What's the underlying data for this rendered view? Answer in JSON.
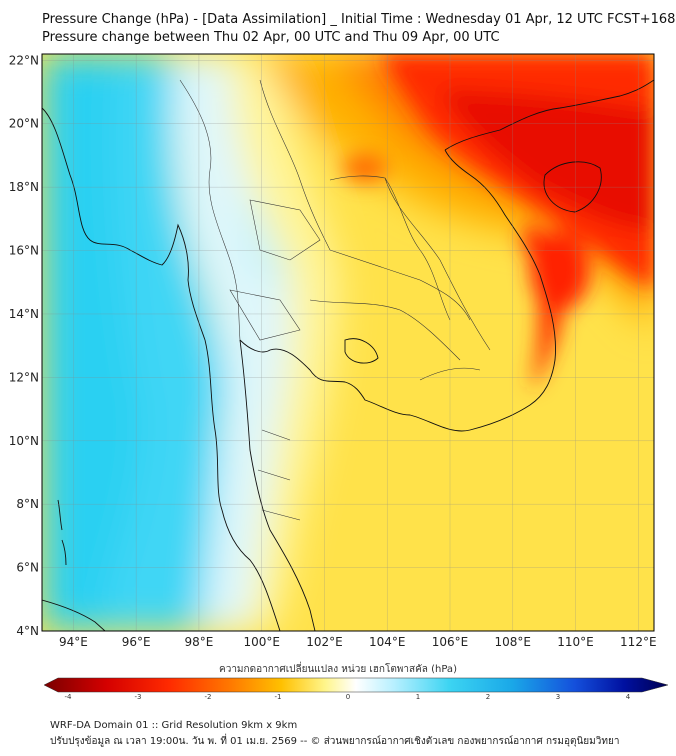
{
  "title_line1": "Pressure Change (hPa) - [Data Assimilation] _ Initial Time : Wednesday 01 Apr, 12 UTC FCST+168",
  "title_line2": "Pressure change between Thu 02 Apr, 00 UTC and Thu 09 Apr, 00 UTC",
  "map": {
    "lat_labels": [
      "4°N",
      "6°N",
      "8°N",
      "10°N",
      "12°N",
      "14°N",
      "16°N",
      "18°N",
      "20°N",
      "22°N"
    ],
    "lon_labels": [
      "94°E",
      "96°E",
      "98°E",
      "100°E",
      "102°E",
      "104°E",
      "106°E",
      "108°E",
      "110°E",
      "112°E"
    ],
    "lat_values": [
      4,
      6,
      8,
      10,
      12,
      14,
      16,
      18,
      20,
      22
    ],
    "lon_values": [
      94,
      96,
      98,
      100,
      102,
      104,
      106,
      108,
      110,
      112
    ],
    "lat_range": [
      4,
      22.2
    ],
    "lon_range": [
      93,
      112.5
    ],
    "grid": true
  },
  "colorbar": {
    "title": "ความกดอากาศเปลี่ยนแปลง หน่วย เฮกโตพาสคัล (hPa)",
    "range": [
      -4,
      4
    ],
    "tick_values": [
      -4,
      -3,
      -2,
      -1,
      0,
      1,
      2,
      3,
      4
    ],
    "tick_labels": [
      "-4",
      "-3",
      "-2",
      "-1",
      "0",
      "1",
      "2",
      "3",
      "4"
    ],
    "colors": [
      "#7a0000",
      "#d40000",
      "#ff2a00",
      "#ff7a00",
      "#ffc000",
      "#fff58a",
      "#ffffff",
      "#b8f0ff",
      "#3cd4f2",
      "#1aa8e8",
      "#1450dc",
      "#0010a0",
      "#000050"
    ]
  },
  "footer_line1": "WRF-DA Domain 01 :: Grid Resolution 9km x 9km",
  "footer_line2": "ปรับปรุงข้อมูล ณ เวลา 19:00น. วัน พ. ที่ 01 เม.ย. 2569 -- © ส่วนพยากรณ์อากาศเชิงตัวเลข กองพยากรณ์อากาศ กรมอุตุนิยมวิทยา"
}
